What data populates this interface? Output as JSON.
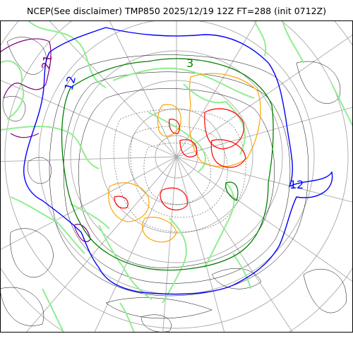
{
  "title": "NCEP(See disclaimer) TMP850 2025/12/19 12Z FT=288 (init 0712Z)",
  "contour_labels": [
    "21",
    "12",
    "3",
    "12"
  ],
  "colors": {
    "background": "#ffffff",
    "frame": "#000000",
    "graticule": "#a9a9a9",
    "coastline": "#90ee90",
    "contour_thin": "#000000",
    "contour_purple": "#800080",
    "contour_blue": "#0000ff",
    "contour_green": "#008000",
    "contour_orange": "#ffa500",
    "contour_red": "#ff0000"
  }
}
